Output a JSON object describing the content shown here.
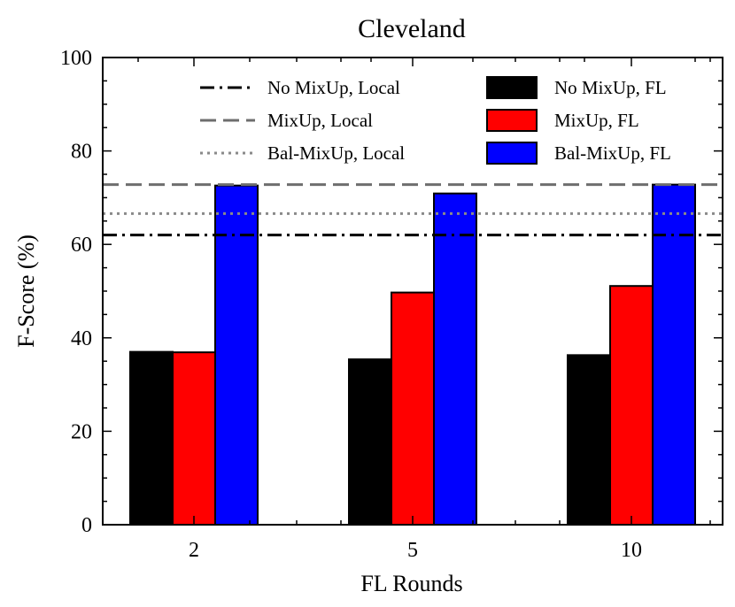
{
  "chart_data": {
    "type": "bar",
    "title": "Cleveland",
    "xlabel": "FL Rounds",
    "ylabel": "F-Score (%)",
    "ylim": [
      0,
      100
    ],
    "yticks": [
      0,
      20,
      40,
      60,
      80,
      100
    ],
    "categories": [
      "2",
      "5",
      "10"
    ],
    "series": [
      {
        "name": "No MixUp, FL",
        "color": "#000000",
        "values": [
          37.0,
          35.4,
          36.3
        ]
      },
      {
        "name": "MixUp, FL",
        "color": "#ff0000",
        "values": [
          36.9,
          49.7,
          51.1
        ]
      },
      {
        "name": "Bal-MixUp, FL",
        "color": "#0000ff",
        "values": [
          72.6,
          70.9,
          72.8
        ]
      }
    ],
    "reference_lines": [
      {
        "name": "No MixUp, Local",
        "value": 62.0,
        "style": "dashdot",
        "color": "#000000"
      },
      {
        "name": "MixUp, Local",
        "value": 72.8,
        "style": "dashed",
        "color": "#6e6e6e"
      },
      {
        "name": "Bal-MixUp, Local",
        "value": 66.6,
        "style": "dotted",
        "color": "#8a8a8a"
      }
    ],
    "grid": false,
    "legend": "top"
  }
}
